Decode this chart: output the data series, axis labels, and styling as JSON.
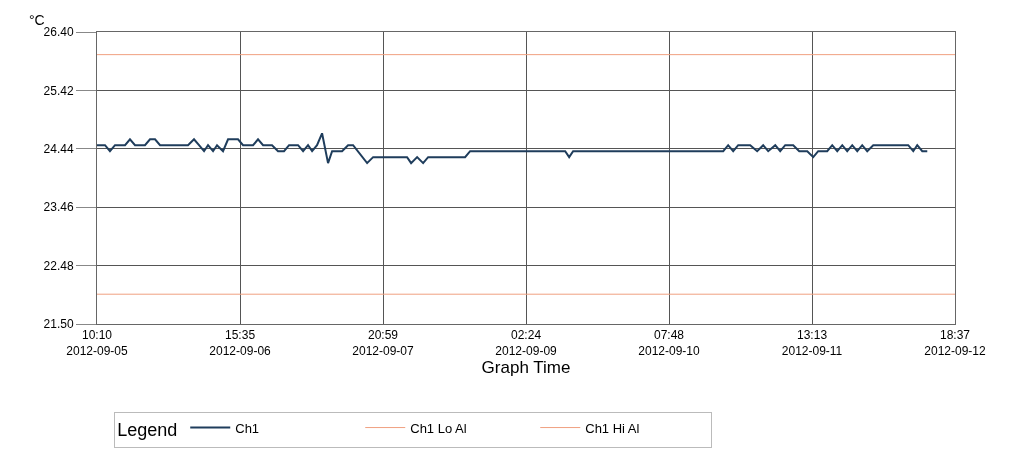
{
  "chart_data": {
    "type": "line",
    "ylabel": "°C",
    "xlabel": "Graph Time",
    "legend_title": "Legend",
    "legend": "bottom",
    "grid": true,
    "marker": "none",
    "line_style": "solid",
    "xlim": [
      "2012-09-05T10:10",
      "2012-09-12T18:37"
    ],
    "xticks": [
      {
        "value": "2012-09-05T10:10",
        "label": "10:10\n2012-09-05"
      },
      {
        "value": "2012-09-06T15:35",
        "label": "15:35\n2012-09-06"
      },
      {
        "value": "2012-09-07T20:59",
        "label": "20:59\n2012-09-07"
      },
      {
        "value": "2012-09-09T02:24",
        "label": "02:24\n2012-09-09"
      },
      {
        "value": "2012-09-10T07:48",
        "label": "07:48\n2012-09-10"
      },
      {
        "value": "2012-09-11T13:13",
        "label": "13:13\n2012-09-11"
      },
      {
        "value": "2012-09-12T18:37",
        "label": "18:37\n2012-09-12"
      }
    ],
    "ylim": [
      21.5,
      26.4
    ],
    "yticks": [
      {
        "value": 21.5,
        "label": "21.50"
      },
      {
        "value": 22.48,
        "label": "22.48"
      },
      {
        "value": 23.46,
        "label": "23.46"
      },
      {
        "value": 24.44,
        "label": "24.44"
      },
      {
        "value": 25.42,
        "label": "25.42"
      },
      {
        "value": 26.4,
        "label": "26.40"
      }
    ],
    "x": [
      "2012-09-05T10:10",
      "2012-09-05T11:49",
      "2012-09-05T12:50",
      "2012-09-05T13:52",
      "2012-09-05T15:56",
      "2012-09-05T16:57",
      "2012-09-05T17:59",
      "2012-09-05T20:02",
      "2012-09-05T21:04",
      "2012-09-05T22:06",
      "2012-09-05T23:08",
      "2012-09-06T04:53",
      "2012-09-06T06:07",
      "2012-09-06T07:09",
      "2012-09-06T08:11",
      "2012-09-06T09:00",
      "2012-09-06T10:02",
      "2012-09-06T10:51",
      "2012-09-06T12:05",
      "2012-09-06T13:07",
      "2012-09-06T15:10",
      "2012-09-06T16:12",
      "2012-09-06T18:16",
      "2012-09-06T19:17",
      "2012-09-06T20:19",
      "2012-09-06T22:10",
      "2012-09-06T23:24",
      "2012-09-07T00:38",
      "2012-09-07T01:40",
      "2012-09-07T03:31",
      "2012-09-07T04:33",
      "2012-09-07T05:34",
      "2012-09-07T06:24",
      "2012-09-07T07:25",
      "2012-09-07T08:27",
      "2012-09-07T09:41",
      "2012-09-07T10:31",
      "2012-09-07T12:34",
      "2012-09-07T13:48",
      "2012-09-07T14:50",
      "2012-09-07T17:43",
      "2012-09-07T18:57",
      "2012-09-08T01:56",
      "2012-09-08T02:46",
      "2012-09-08T04:00",
      "2012-09-08T05:14",
      "2012-09-08T06:16",
      "2012-09-08T13:52",
      "2012-09-08T14:54",
      "2012-09-09T10:27",
      "2012-09-09T11:16",
      "2012-09-09T12:05",
      "2012-09-10T08:03",
      "2012-09-10T18:57",
      "2012-09-10T19:58",
      "2012-09-10T21:00",
      "2012-09-10T22:02",
      "2012-09-11T00:30",
      "2012-09-11T01:56",
      "2012-09-11T03:10",
      "2012-09-11T04:12",
      "2012-09-11T05:39",
      "2012-09-11T06:40",
      "2012-09-11T07:42",
      "2012-09-11T09:21",
      "2012-09-11T10:35",
      "2012-09-11T12:14",
      "2012-09-11T13:28",
      "2012-09-11T14:29",
      "2012-09-11T16:20",
      "2012-09-11T17:22",
      "2012-09-11T18:24",
      "2012-09-11T19:26",
      "2012-09-11T20:27",
      "2012-09-11T21:29",
      "2012-09-11T22:31",
      "2012-09-11T23:32",
      "2012-09-12T00:34",
      "2012-09-12T01:48",
      "2012-09-12T03:15",
      "2012-09-12T09:00",
      "2012-09-12T10:02",
      "2012-09-12T10:51",
      "2012-09-12T11:53",
      "2012-09-12T12:55"
    ],
    "series": [
      {
        "name": "Ch1",
        "color": "#1f3d5c",
        "values": [
          24.5,
          24.5,
          24.4,
          24.5,
          24.5,
          24.6,
          24.5,
          24.5,
          24.6,
          24.6,
          24.5,
          24.5,
          24.6,
          24.5,
          24.4,
          24.5,
          24.4,
          24.5,
          24.4,
          24.6,
          24.6,
          24.5,
          24.5,
          24.6,
          24.5,
          24.5,
          24.4,
          24.4,
          24.5,
          24.5,
          24.4,
          24.5,
          24.4,
          24.5,
          24.7,
          24.2,
          24.4,
          24.4,
          24.5,
          24.5,
          24.2,
          24.3,
          24.3,
          24.2,
          24.3,
          24.2,
          24.3,
          24.3,
          24.4,
          24.4,
          24.3,
          24.4,
          24.4,
          24.4,
          24.5,
          24.4,
          24.5,
          24.5,
          24.4,
          24.5,
          24.4,
          24.5,
          24.4,
          24.5,
          24.5,
          24.4,
          24.4,
          24.3,
          24.4,
          24.4,
          24.5,
          24.4,
          24.5,
          24.4,
          24.5,
          24.4,
          24.5,
          24.4,
          24.5,
          24.5,
          24.5,
          24.4,
          24.5,
          24.4,
          24.4
        ]
      }
    ],
    "ref_lines": [
      {
        "axis": "y",
        "value": 22.0,
        "label": "Ch1 Lo Al",
        "color": "#f0a080",
        "line_style": "solid"
      },
      {
        "axis": "y",
        "value": 26.02,
        "label": "Ch1 Hi Al",
        "color": "#f0a080",
        "line_style": "solid"
      }
    ]
  }
}
